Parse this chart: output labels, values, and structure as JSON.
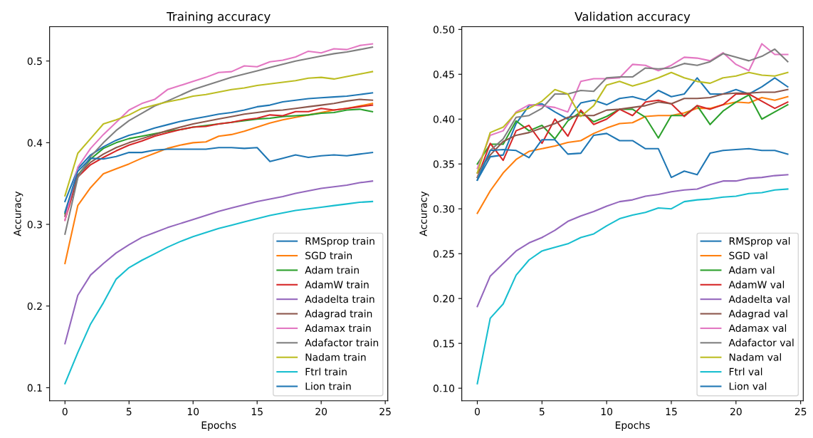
{
  "chart_data": [
    {
      "type": "line",
      "title": "Training accuracy",
      "xlabel": "Epochs",
      "ylabel": "Accuracy",
      "legend": "bottom right",
      "grid": false,
      "x": [
        0,
        1,
        2,
        3,
        4,
        5,
        6,
        7,
        8,
        9,
        10,
        11,
        12,
        13,
        14,
        15,
        16,
        17,
        18,
        19,
        20,
        21,
        22,
        23,
        24
      ],
      "xlim": [
        -1.2,
        25.2
      ],
      "xticks": [
        0,
        5,
        10,
        15,
        20,
        25
      ],
      "ylim": [
        0.084,
        0.542
      ],
      "yticks": [
        0.1,
        0.2,
        0.3,
        0.4,
        0.5
      ],
      "series": [
        {
          "name": "RMSprop train",
          "color": "#1f77b4",
          "values": [
            0.328,
            0.368,
            0.385,
            0.395,
            0.403,
            0.409,
            0.413,
            0.418,
            0.422,
            0.426,
            0.429,
            0.432,
            0.435,
            0.437,
            0.44,
            0.444,
            0.446,
            0.45,
            0.452,
            0.454,
            0.455,
            0.456,
            0.457,
            0.459,
            0.461
          ]
        },
        {
          "name": "SGD train",
          "color": "#ff7f0e",
          "values": [
            0.252,
            0.323,
            0.345,
            0.362,
            0.368,
            0.374,
            0.381,
            0.387,
            0.393,
            0.397,
            0.4,
            0.401,
            0.408,
            0.41,
            0.414,
            0.419,
            0.424,
            0.428,
            0.431,
            0.434,
            0.437,
            0.44,
            0.442,
            0.445,
            0.448
          ]
        },
        {
          "name": "Adam train",
          "color": "#2ca02c",
          "values": [
            0.313,
            0.36,
            0.38,
            0.393,
            0.4,
            0.405,
            0.408,
            0.411,
            0.414,
            0.416,
            0.419,
            0.421,
            0.423,
            0.425,
            0.427,
            0.429,
            0.43,
            0.432,
            0.433,
            0.434,
            0.436,
            0.437,
            0.44,
            0.441,
            0.438
          ]
        },
        {
          "name": "AdamW train",
          "color": "#d62728",
          "values": [
            0.305,
            0.358,
            0.373,
            0.382,
            0.39,
            0.397,
            0.402,
            0.408,
            0.412,
            0.416,
            0.419,
            0.42,
            0.423,
            0.425,
            0.428,
            0.43,
            0.434,
            0.433,
            0.438,
            0.438,
            0.442,
            0.44,
            0.442,
            0.444,
            0.446
          ]
        },
        {
          "name": "Adadelta train",
          "color": "#9467bd",
          "values": [
            0.154,
            0.213,
            0.238,
            0.252,
            0.265,
            0.275,
            0.284,
            0.29,
            0.296,
            0.301,
            0.306,
            0.311,
            0.316,
            0.32,
            0.324,
            0.328,
            0.331,
            0.334,
            0.338,
            0.341,
            0.344,
            0.346,
            0.348,
            0.351,
            0.353
          ]
        },
        {
          "name": "Adagrad train",
          "color": "#8c564b",
          "values": [
            0.31,
            0.36,
            0.376,
            0.386,
            0.394,
            0.4,
            0.405,
            0.41,
            0.415,
            0.419,
            0.423,
            0.426,
            0.429,
            0.432,
            0.435,
            0.437,
            0.439,
            0.44,
            0.442,
            0.444,
            0.446,
            0.448,
            0.451,
            0.453,
            0.452
          ]
        },
        {
          "name": "Adamax train",
          "color": "#e377c2",
          "values": [
            0.305,
            0.37,
            0.393,
            0.41,
            0.425,
            0.44,
            0.448,
            0.453,
            0.465,
            0.47,
            0.475,
            0.48,
            0.486,
            0.487,
            0.494,
            0.493,
            0.499,
            0.501,
            0.505,
            0.512,
            0.51,
            0.515,
            0.514,
            0.519,
            0.521
          ]
        },
        {
          "name": "Adafactor train",
          "color": "#7f7f7f",
          "values": [
            0.288,
            0.357,
            0.383,
            0.4,
            0.415,
            0.427,
            0.436,
            0.445,
            0.451,
            0.458,
            0.465,
            0.47,
            0.475,
            0.48,
            0.484,
            0.488,
            0.492,
            0.496,
            0.5,
            0.503,
            0.506,
            0.509,
            0.511,
            0.514,
            0.517
          ]
        },
        {
          "name": "Nadam train",
          "color": "#bcbd22",
          "values": [
            0.335,
            0.387,
            0.405,
            0.423,
            0.428,
            0.434,
            0.442,
            0.446,
            0.45,
            0.453,
            0.457,
            0.459,
            0.462,
            0.465,
            0.467,
            0.47,
            0.472,
            0.474,
            0.476,
            0.479,
            0.48,
            0.478,
            0.481,
            0.484,
            0.487
          ]
        },
        {
          "name": "Ftrl train",
          "color": "#17becf",
          "values": [
            0.105,
            0.143,
            0.178,
            0.204,
            0.233,
            0.247,
            0.256,
            0.264,
            0.272,
            0.279,
            0.285,
            0.29,
            0.295,
            0.299,
            0.303,
            0.307,
            0.311,
            0.314,
            0.317,
            0.319,
            0.321,
            0.323,
            0.325,
            0.327,
            0.328
          ]
        },
        {
          "name": "Lion train",
          "color": "#1f77b4",
          "values": [
            0.315,
            0.365,
            0.381,
            0.38,
            0.383,
            0.388,
            0.388,
            0.391,
            0.392,
            0.392,
            0.392,
            0.392,
            0.394,
            0.394,
            0.393,
            0.394,
            0.377,
            0.381,
            0.385,
            0.382,
            0.384,
            0.385,
            0.384,
            0.386,
            0.388
          ]
        }
      ]
    },
    {
      "type": "line",
      "title": "Validation accuracy",
      "xlabel": "Epochs",
      "ylabel": "Accuracy",
      "legend": "bottom right",
      "grid": false,
      "x": [
        0,
        1,
        2,
        3,
        4,
        5,
        6,
        7,
        8,
        9,
        10,
        11,
        12,
        13,
        14,
        15,
        16,
        17,
        18,
        19,
        20,
        21,
        22,
        23,
        24
      ],
      "xlim": [
        -1.2,
        25.2
      ],
      "xticks": [
        0,
        5,
        10,
        15,
        20,
        25
      ],
      "ylim": [
        0.086,
        0.503
      ],
      "yticks": [
        {
          "value": 0.1,
          "label": "0.10"
        },
        {
          "value": 0.15,
          "label": "0.15"
        },
        {
          "value": 0.2,
          "label": "0.20"
        },
        {
          "value": 0.25,
          "label": "0.25"
        },
        {
          "value": 0.3,
          "label": "0.30"
        },
        {
          "value": 0.35,
          "label": "0.35"
        },
        {
          "value": 0.4,
          "label": "0.40"
        },
        {
          "value": 0.45,
          "label": "0.45"
        },
        {
          "value": 0.5,
          "label": "0.50"
        }
      ],
      "series": [
        {
          "name": "RMSprop val",
          "color": "#1f77b4",
          "values": [
            0.332,
            0.358,
            0.36,
            0.395,
            0.415,
            0.417,
            0.408,
            0.4,
            0.418,
            0.421,
            0.416,
            0.423,
            0.425,
            0.421,
            0.432,
            0.425,
            0.428,
            0.446,
            0.428,
            0.428,
            0.433,
            0.428,
            0.436,
            0.446,
            0.436
          ]
        },
        {
          "name": "SGD val",
          "color": "#ff7f0e",
          "values": [
            0.295,
            0.32,
            0.34,
            0.355,
            0.364,
            0.367,
            0.37,
            0.374,
            0.376,
            0.384,
            0.39,
            0.395,
            0.396,
            0.403,
            0.404,
            0.404,
            0.407,
            0.412,
            0.412,
            0.416,
            0.419,
            0.418,
            0.424,
            0.421,
            0.425
          ]
        },
        {
          "name": "Adam val",
          "color": "#2ca02c",
          "values": [
            0.35,
            0.372,
            0.372,
            0.398,
            0.387,
            0.393,
            0.378,
            0.398,
            0.408,
            0.397,
            0.403,
            0.411,
            0.411,
            0.402,
            0.379,
            0.404,
            0.404,
            0.415,
            0.394,
            0.409,
            0.419,
            0.427,
            0.4,
            0.408,
            0.416
          ]
        },
        {
          "name": "AdamW val",
          "color": "#d62728",
          "values": [
            0.335,
            0.373,
            0.354,
            0.387,
            0.393,
            0.373,
            0.4,
            0.381,
            0.41,
            0.394,
            0.4,
            0.411,
            0.404,
            0.419,
            0.421,
            0.417,
            0.403,
            0.415,
            0.411,
            0.416,
            0.428,
            0.428,
            0.42,
            0.412,
            0.419
          ]
        },
        {
          "name": "Adadelta val",
          "color": "#9467bd",
          "values": [
            0.191,
            0.225,
            0.239,
            0.253,
            0.262,
            0.268,
            0.276,
            0.286,
            0.292,
            0.297,
            0.303,
            0.308,
            0.31,
            0.314,
            0.316,
            0.319,
            0.321,
            0.322,
            0.327,
            0.331,
            0.331,
            0.334,
            0.335,
            0.337,
            0.338
          ]
        },
        {
          "name": "Adagrad val",
          "color": "#8c564b",
          "values": [
            0.34,
            0.36,
            0.375,
            0.382,
            0.385,
            0.39,
            0.395,
            0.402,
            0.404,
            0.404,
            0.41,
            0.411,
            0.413,
            0.415,
            0.419,
            0.417,
            0.423,
            0.423,
            0.424,
            0.428,
            0.429,
            0.429,
            0.43,
            0.43,
            0.433
          ]
        },
        {
          "name": "Adamax val",
          "color": "#e377c2",
          "values": [
            0.345,
            0.382,
            0.387,
            0.408,
            0.416,
            0.415,
            0.413,
            0.408,
            0.442,
            0.445,
            0.445,
            0.446,
            0.461,
            0.46,
            0.454,
            0.46,
            0.469,
            0.468,
            0.465,
            0.474,
            0.461,
            0.454,
            0.484,
            0.472,
            0.472
          ]
        },
        {
          "name": "Adafactor val",
          "color": "#7f7f7f",
          "values": [
            0.335,
            0.365,
            0.378,
            0.402,
            0.404,
            0.412,
            0.428,
            0.428,
            0.432,
            0.431,
            0.446,
            0.447,
            0.447,
            0.457,
            0.456,
            0.457,
            0.462,
            0.46,
            0.464,
            0.473,
            0.469,
            0.465,
            0.47,
            0.478,
            0.464
          ]
        },
        {
          "name": "Nadam val",
          "color": "#bcbd22",
          "values": [
            0.34,
            0.385,
            0.391,
            0.407,
            0.412,
            0.42,
            0.433,
            0.428,
            0.403,
            0.415,
            0.438,
            0.442,
            0.437,
            0.441,
            0.446,
            0.452,
            0.446,
            0.442,
            0.44,
            0.446,
            0.448,
            0.452,
            0.449,
            0.448,
            0.452
          ]
        },
        {
          "name": "Ftrl val",
          "color": "#17becf",
          "values": [
            0.105,
            0.178,
            0.194,
            0.226,
            0.243,
            0.253,
            0.257,
            0.261,
            0.268,
            0.272,
            0.281,
            0.289,
            0.293,
            0.296,
            0.301,
            0.3,
            0.308,
            0.31,
            0.311,
            0.313,
            0.314,
            0.317,
            0.318,
            0.321,
            0.322
          ]
        },
        {
          "name": "Lion val",
          "color": "#1f77b4",
          "values": [
            0.332,
            0.365,
            0.366,
            0.365,
            0.357,
            0.377,
            0.377,
            0.361,
            0.362,
            0.382,
            0.384,
            0.376,
            0.376,
            0.367,
            0.367,
            0.335,
            0.342,
            0.338,
            0.362,
            0.365,
            0.366,
            0.367,
            0.365,
            0.365,
            0.361
          ]
        }
      ]
    }
  ]
}
